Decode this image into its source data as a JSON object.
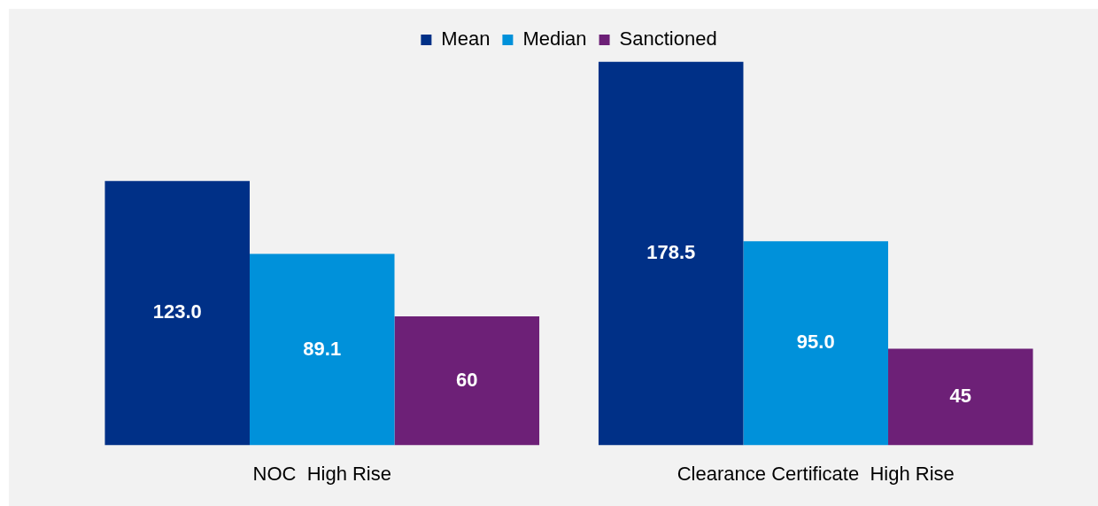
{
  "chart_data": {
    "type": "bar",
    "categories": [
      "NOC  High Rise",
      "Clearance Certificate  High Rise"
    ],
    "series": [
      {
        "name": "Mean",
        "color": "#003087",
        "values": [
          123.0,
          178.5
        ],
        "value_labels": [
          "123.0",
          "178.5"
        ]
      },
      {
        "name": "Median",
        "color": "#0091da",
        "values": [
          89.1,
          95.0
        ],
        "value_labels": [
          "89.1",
          "95.0"
        ]
      },
      {
        "name": "Sanctioned",
        "color": "#6d2077",
        "values": [
          60,
          45
        ],
        "value_labels": [
          "60",
          "45"
        ]
      }
    ],
    "legend": "top",
    "grid": false,
    "tick_labels": "x"
  }
}
